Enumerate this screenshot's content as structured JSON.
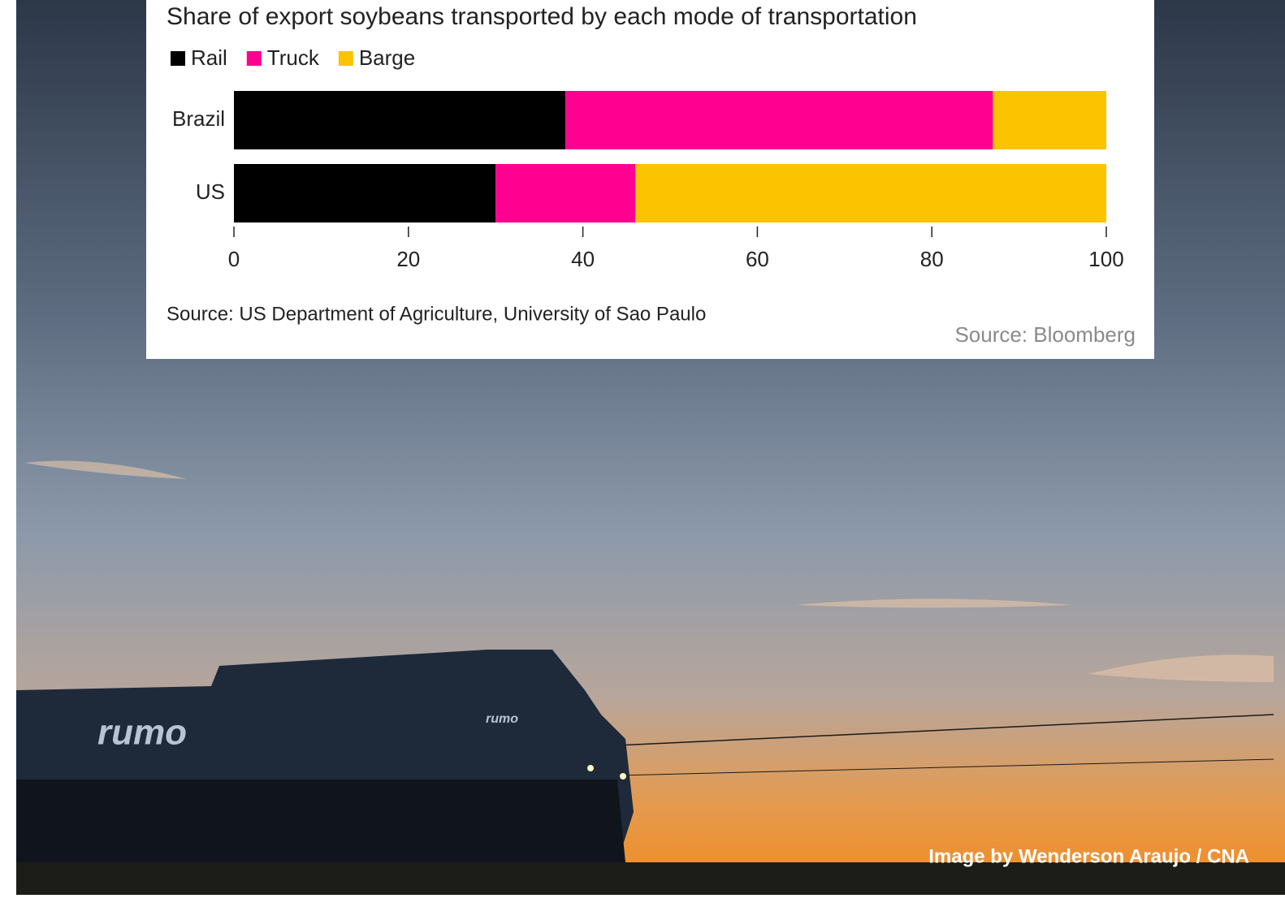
{
  "chart_data": {
    "type": "stacked-bar-horizontal",
    "title": "Share of export soybeans transported by each mode of transportation",
    "categories": [
      "Brazil",
      "US"
    ],
    "series": [
      {
        "name": "Rail",
        "color": "#000000",
        "values": [
          38,
          30
        ]
      },
      {
        "name": "Truck",
        "color": "#ff0090",
        "values": [
          49,
          16
        ]
      },
      {
        "name": "Barge",
        "color": "#fcc300",
        "values": [
          13,
          54
        ]
      }
    ],
    "xlim": [
      0,
      100
    ],
    "xticks": [
      0,
      20,
      40,
      60,
      80,
      100
    ],
    "note": "Source: US Department of Agriculture, University of Sao Paulo"
  },
  "credit": "Source: Bloomberg",
  "image_credit": "Image by Wenderson Araujo / CNA"
}
